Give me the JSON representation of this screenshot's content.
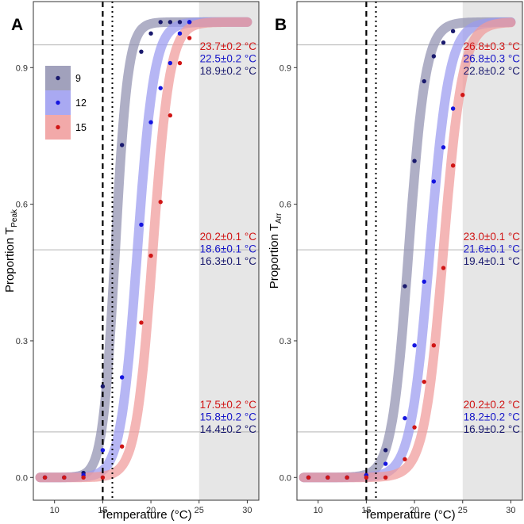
{
  "chart_data": [
    {
      "panel": "A",
      "type": "scatter",
      "title": "",
      "xlabel": "Temperature (°C)",
      "ylabel": "Proportion T",
      "ylabel_sub": "Peak",
      "xlim": [
        7.8,
        31.2
      ],
      "ylim": [
        -0.05,
        1.045
      ],
      "xticks": [
        10,
        15,
        20,
        25,
        30
      ],
      "yticks": [
        0.0,
        0.3,
        0.6,
        0.9
      ],
      "ytick_labels": [
        "0.0",
        "0.3",
        "0.6",
        "0.9"
      ],
      "hlines": [
        0.1,
        0.5,
        0.95
      ],
      "vlines": [
        {
          "x": 15,
          "style": "dashed"
        },
        {
          "x": 16,
          "style": "dotted"
        }
      ],
      "shaded_region": {
        "from": 25,
        "to": 31.2
      },
      "legend": {
        "position": "top-left",
        "entries": [
          "9",
          "12",
          "15"
        ]
      },
      "series": [
        {
          "name": "9",
          "color": "#1a1a6e",
          "band": "#9090b0",
          "x50": 16.3,
          "scale": 0.66,
          "points": [
            [
              9,
              0.0
            ],
            [
              11,
              0.0
            ],
            [
              13,
              0.01
            ],
            [
              15,
              0.2
            ],
            [
              17,
              0.73
            ],
            [
              19,
              0.935
            ],
            [
              20,
              0.975
            ],
            [
              21,
              1.0
            ],
            [
              22,
              1.0
            ],
            [
              23,
              1.0
            ],
            [
              24,
              1.0
            ]
          ]
        },
        {
          "name": "12",
          "color": "#1515e0",
          "band": "#9a9af0",
          "x50": 18.6,
          "scale": 0.87,
          "points": [
            [
              9,
              0.0
            ],
            [
              11,
              0.0
            ],
            [
              13,
              0.005
            ],
            [
              15,
              0.06
            ],
            [
              17,
              0.22
            ],
            [
              19,
              0.555
            ],
            [
              20,
              0.78
            ],
            [
              21,
              0.855
            ],
            [
              22,
              0.91
            ],
            [
              23,
              0.975
            ],
            [
              24,
              1.0
            ]
          ]
        },
        {
          "name": "15",
          "color": "#d01515",
          "band": "#f09a9a",
          "x50": 20.2,
          "scale": 0.88,
          "points": [
            [
              9,
              0.0
            ],
            [
              11,
              0.0
            ],
            [
              13,
              0.0
            ],
            [
              15,
              0.0
            ],
            [
              17,
              0.068
            ],
            [
              19,
              0.34
            ],
            [
              20,
              0.487
            ],
            [
              21,
              0.605
            ],
            [
              22,
              0.795
            ],
            [
              23,
              0.91
            ],
            [
              24,
              0.965
            ]
          ]
        }
      ],
      "annotations": [
        {
          "level": "top",
          "lines": [
            {
              "text": "23.7±0.2 °C",
              "color": "#d01515"
            },
            {
              "text": "22.5±0.2 °C",
              "color": "#1515c8"
            },
            {
              "text": "18.9±0.2 °C",
              "color": "#1a1a6e"
            }
          ]
        },
        {
          "level": "middle",
          "lines": [
            {
              "text": "20.2±0.1 °C",
              "color": "#d01515"
            },
            {
              "text": "18.6±0.1 °C",
              "color": "#1515c8"
            },
            {
              "text": "16.3±0.1 °C",
              "color": "#1a1a6e"
            }
          ]
        },
        {
          "level": "bottom",
          "lines": [
            {
              "text": "17.5±0.2 °C",
              "color": "#d01515"
            },
            {
              "text": "15.8±0.2 °C",
              "color": "#1515c8"
            },
            {
              "text": "14.4±0.2 °C",
              "color": "#1a1a6e"
            }
          ]
        }
      ]
    },
    {
      "panel": "B",
      "type": "scatter",
      "title": "",
      "xlabel": "Temperature (°C)",
      "ylabel": "Proportion T",
      "ylabel_sub": "Arr",
      "xlim": [
        7.8,
        31.2
      ],
      "ylim": [
        -0.05,
        1.045
      ],
      "xticks": [
        10,
        15,
        20,
        25,
        30
      ],
      "yticks": [
        0.0,
        0.3,
        0.6,
        0.9
      ],
      "ytick_labels": [
        "0.0",
        "0.3",
        "0.6",
        "0.9"
      ],
      "hlines": [
        0.1,
        0.5,
        0.95
      ],
      "vlines": [
        {
          "x": 15,
          "style": "dashed"
        },
        {
          "x": 16,
          "style": "dotted"
        }
      ],
      "shaded_region": {
        "from": 25,
        "to": 31.2
      },
      "series": [
        {
          "name": "9",
          "color": "#1a1a6e",
          "band": "#9090b0",
          "x50": 19.4,
          "scale": 0.88,
          "points": [
            [
              9,
              0.0
            ],
            [
              11,
              0.0
            ],
            [
              13,
              0.0
            ],
            [
              15,
              0.005
            ],
            [
              17,
              0.06
            ],
            [
              19,
              0.42
            ],
            [
              20,
              0.695
            ],
            [
              21,
              0.87
            ],
            [
              22,
              0.925
            ],
            [
              23,
              0.955
            ],
            [
              24,
              0.98
            ]
          ]
        },
        {
          "name": "12",
          "color": "#1515e0",
          "band": "#9a9af0",
          "x50": 21.6,
          "scale": 1.0,
          "points": [
            [
              9,
              0.0
            ],
            [
              11,
              0.0
            ],
            [
              13,
              0.0
            ],
            [
              15,
              0.005
            ],
            [
              17,
              0.03
            ],
            [
              19,
              0.13
            ],
            [
              20,
              0.29
            ],
            [
              21,
              0.43
            ],
            [
              22,
              0.65
            ],
            [
              23,
              0.725
            ],
            [
              24,
              0.81
            ]
          ]
        },
        {
          "name": "15",
          "color": "#d01515",
          "band": "#f09a9a",
          "x50": 23.0,
          "scale": 1.0,
          "points": [
            [
              9,
              0.0
            ],
            [
              11,
              0.0
            ],
            [
              13,
              0.0
            ],
            [
              15,
              0.0
            ],
            [
              17,
              0.0
            ],
            [
              19,
              0.04
            ],
            [
              20,
              0.11
            ],
            [
              21,
              0.21
            ],
            [
              22,
              0.29
            ],
            [
              23,
              0.46
            ],
            [
              24,
              0.685
            ],
            [
              25,
              0.84
            ]
          ]
        }
      ],
      "annotations": [
        {
          "level": "top",
          "lines": [
            {
              "text": "26.8±0.3 °C",
              "color": "#d01515"
            },
            {
              "text": "26.8±0.3 °C",
              "color": "#1515c8"
            },
            {
              "text": "22.8±0.2 °C",
              "color": "#1a1a6e"
            }
          ]
        },
        {
          "level": "middle",
          "lines": [
            {
              "text": "23.0±0.1 °C",
              "color": "#d01515"
            },
            {
              "text": "21.6±0.1 °C",
              "color": "#1515c8"
            },
            {
              "text": "19.4±0.1 °C",
              "color": "#1a1a6e"
            }
          ]
        },
        {
          "level": "bottom",
          "lines": [
            {
              "text": "20.2±0.2 °C",
              "color": "#d01515"
            },
            {
              "text": "18.2±0.2 °C",
              "color": "#1515c8"
            },
            {
              "text": "16.9±0.2 °C",
              "color": "#1a1a6e"
            }
          ]
        }
      ]
    }
  ]
}
